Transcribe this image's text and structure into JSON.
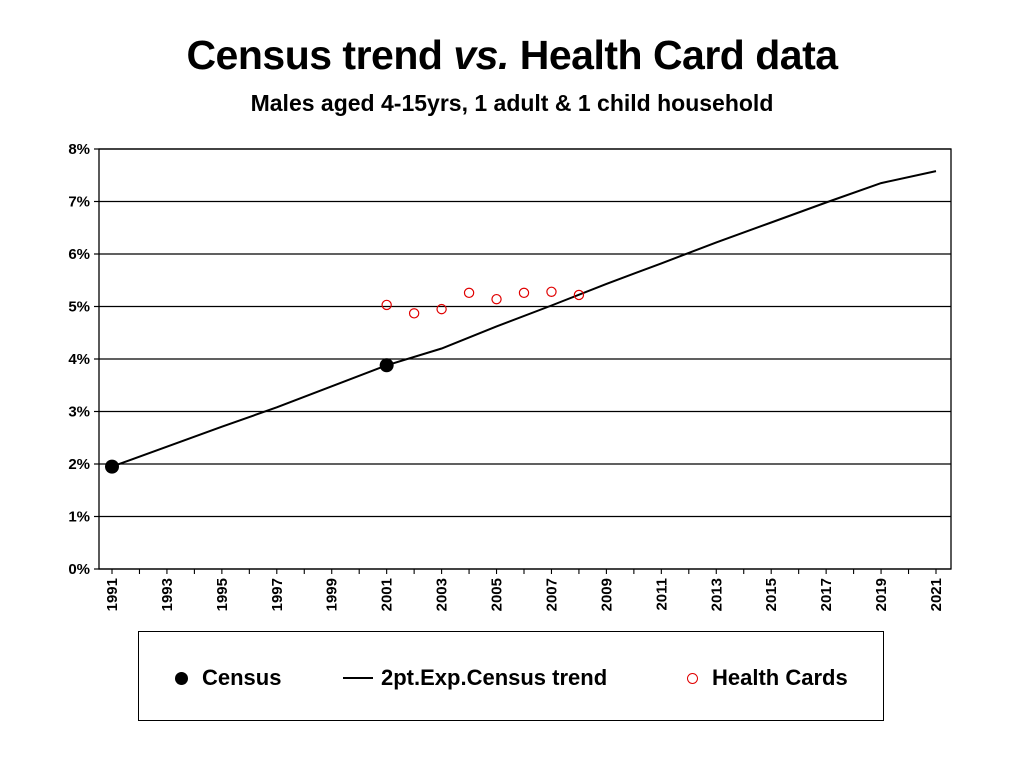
{
  "title": {
    "main": "Census trend",
    "emph": "vs.",
    "rest": "Health Card data"
  },
  "subtitle": "Males aged 4-15yrs, 1 adult & 1 child household",
  "chart_data": {
    "type": "line",
    "title": "Census trend vs. Health Card data",
    "subtitle": "Males aged 4-15yrs, 1 adult & 1 child household",
    "xlabel": "",
    "ylabel": "",
    "xlim": [
      1991,
      2021
    ],
    "ylim": [
      0,
      8
    ],
    "y_tick_labels": [
      "0%",
      "1%",
      "2%",
      "3%",
      "4%",
      "5%",
      "6%",
      "7%",
      "8%"
    ],
    "x_tick_labels": [
      "1991",
      "1993",
      "1995",
      "1997",
      "1999",
      "2001",
      "2003",
      "2005",
      "2007",
      "2009",
      "2011",
      "2013",
      "2015",
      "2017",
      "2019",
      "2021"
    ],
    "grid": "horizontal",
    "legend_position": "bottom",
    "series": [
      {
        "name": "Census",
        "style": "filled-dot",
        "color": "#000000",
        "points": [
          {
            "x": 1991,
            "y": 1.95
          },
          {
            "x": 2001,
            "y": 3.88
          }
        ]
      },
      {
        "name": "2pt.Exp.Census trend",
        "style": "line",
        "color": "#000000",
        "points": [
          {
            "x": 1991,
            "y": 1.95
          },
          {
            "x": 1993,
            "y": 2.33
          },
          {
            "x": 1995,
            "y": 2.71
          },
          {
            "x": 1997,
            "y": 3.08
          },
          {
            "x": 1999,
            "y": 3.48
          },
          {
            "x": 2001,
            "y": 3.88
          },
          {
            "x": 2003,
            "y": 4.2
          },
          {
            "x": 2005,
            "y": 4.62
          },
          {
            "x": 2007,
            "y": 5.02
          },
          {
            "x": 2009,
            "y": 5.43
          },
          {
            "x": 2011,
            "y": 5.82
          },
          {
            "x": 2013,
            "y": 6.22
          },
          {
            "x": 2015,
            "y": 6.6
          },
          {
            "x": 2017,
            "y": 6.98
          },
          {
            "x": 2019,
            "y": 7.35
          },
          {
            "x": 2021,
            "y": 7.58
          }
        ]
      },
      {
        "name": "Health Cards",
        "style": "open-circle",
        "color": "#e00000",
        "points": [
          {
            "x": 2001,
            "y": 5.03
          },
          {
            "x": 2002,
            "y": 4.87
          },
          {
            "x": 2003,
            "y": 4.95
          },
          {
            "x": 2004,
            "y": 5.26
          },
          {
            "x": 2005,
            "y": 5.14
          },
          {
            "x": 2006,
            "y": 5.26
          },
          {
            "x": 2007,
            "y": 5.28
          },
          {
            "x": 2008,
            "y": 5.22
          }
        ]
      }
    ]
  },
  "legend": {
    "census": "Census",
    "trend": "2pt.Exp.Census trend",
    "health": "Health Cards"
  }
}
